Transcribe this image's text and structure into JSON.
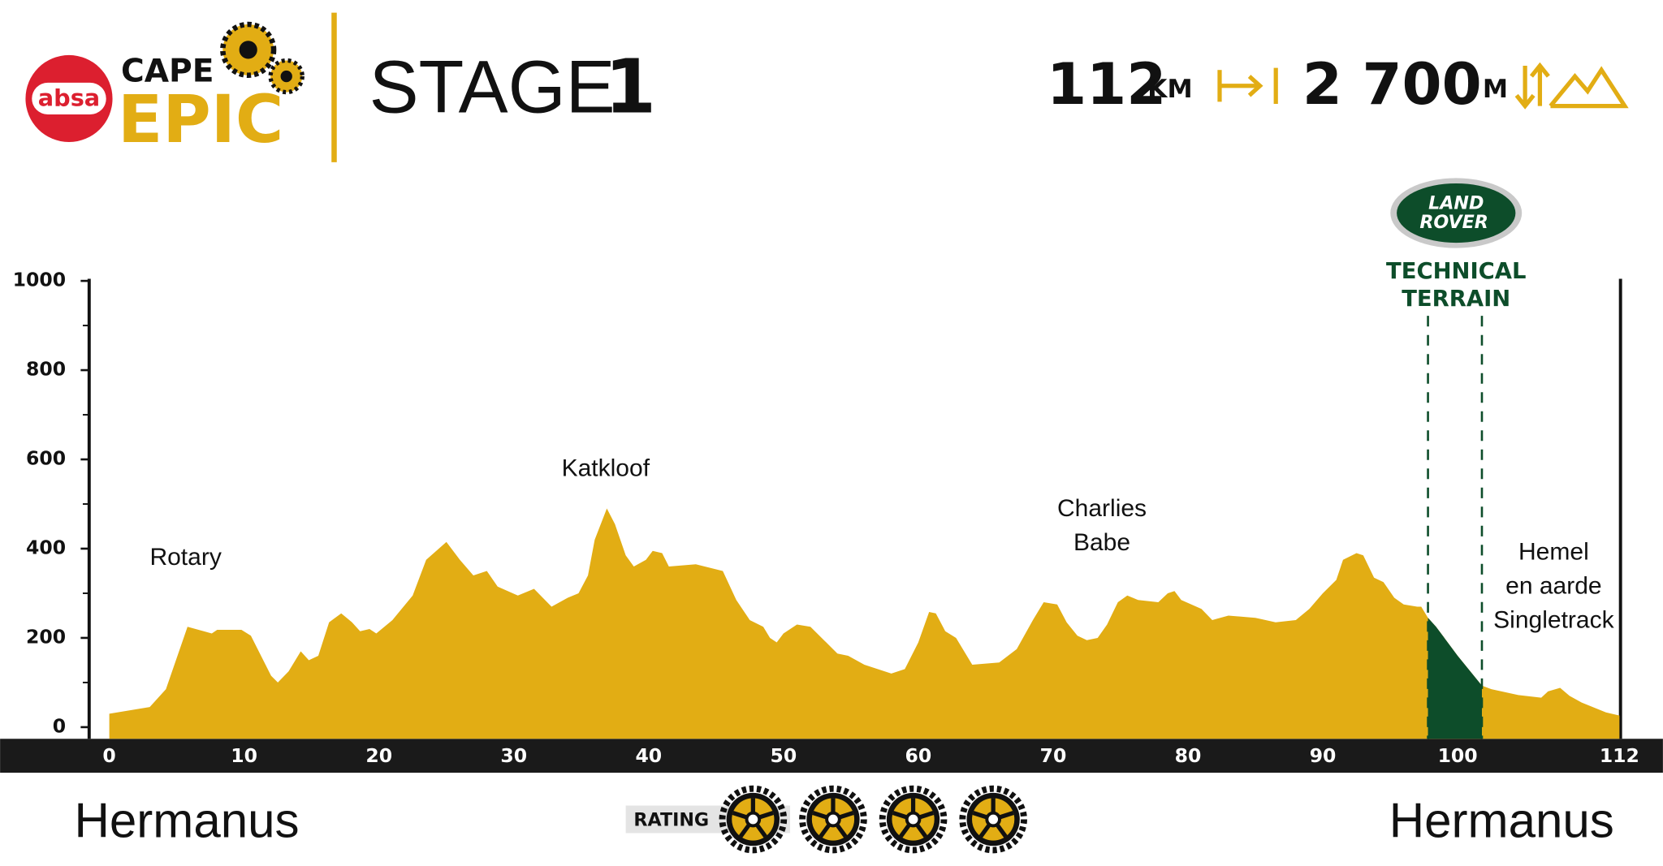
{
  "header": {
    "sponsor": "absa",
    "brand_top": "CAPE",
    "brand_bottom": "EPIC",
    "stage_word": "STAGE",
    "stage_number": "1",
    "distance": "112",
    "distance_unit": "KM",
    "climbing": "2 700",
    "climbing_unit": "M"
  },
  "chart_data": {
    "type": "area",
    "color": "#e2ad14",
    "x": [
      0,
      3,
      4.2,
      5.8,
      7.6,
      8,
      9.8,
      10.5,
      12,
      12.5,
      13.3,
      14.2,
      14.8,
      15.5,
      16.3,
      17.2,
      18,
      18.6,
      19.3,
      19.8,
      21,
      22.5,
      23.5,
      25,
      26,
      27,
      28,
      28.8,
      30.3,
      31.5,
      32.8,
      34,
      34.8,
      35.5,
      36,
      36.9,
      37.5,
      38.3,
      38.9,
      39.8,
      40.3,
      41,
      41.5,
      43.5,
      45.5,
      46.5,
      47.5,
      48.5,
      49,
      49.5,
      50,
      51,
      52,
      53,
      54,
      54.8,
      56,
      58,
      59,
      60,
      60.8,
      61.3,
      62,
      62.8,
      64,
      66,
      67.3,
      68.5,
      69.3,
      70.3,
      71,
      71.8,
      72.5,
      73.3,
      74,
      74.8,
      75.5,
      76.3,
      77.8,
      78.5,
      79,
      79.5,
      81,
      81.8,
      83,
      85,
      86.5,
      88,
      89,
      90,
      91,
      91.5,
      92.5,
      93,
      93.8,
      94.5,
      95.3,
      96,
      97,
      97.3,
      97.8,
      98.4,
      100,
      101.8,
      102.5,
      104.5,
      106.2,
      106.7,
      107.6,
      108.3,
      109.2,
      111,
      112
    ],
    "values": [
      30,
      45,
      85,
      225,
      210,
      218,
      218,
      205,
      115,
      100,
      125,
      170,
      150,
      160,
      235,
      255,
      235,
      215,
      220,
      210,
      240,
      295,
      375,
      415,
      375,
      340,
      350,
      315,
      295,
      310,
      270,
      290,
      300,
      340,
      420,
      490,
      455,
      385,
      360,
      375,
      395,
      390,
      360,
      365,
      350,
      285,
      240,
      225,
      200,
      190,
      210,
      230,
      225,
      195,
      165,
      160,
      140,
      120,
      130,
      190,
      258,
      255,
      215,
      200,
      140,
      145,
      175,
      240,
      280,
      275,
      235,
      205,
      195,
      200,
      230,
      280,
      295,
      285,
      280,
      300,
      305,
      285,
      265,
      240,
      250,
      245,
      235,
      240,
      265,
      300,
      330,
      375,
      390,
      385,
      335,
      325,
      290,
      275,
      270,
      270,
      245,
      225,
      160,
      93,
      85,
      72,
      66,
      80,
      88,
      70,
      55,
      33,
      26
    ],
    "xlim": [
      0,
      112
    ],
    "ylim": [
      0,
      1000
    ],
    "xticks": [
      0,
      10,
      20,
      30,
      40,
      50,
      60,
      70,
      80,
      90,
      100,
      112
    ],
    "yticks": [
      0,
      200,
      400,
      600,
      800,
      1000
    ],
    "annotations": [
      [
        "Rotary"
      ],
      [
        "Katkloof"
      ],
      [
        "Charlies",
        "Babe"
      ],
      [
        "Hemel",
        "en aarde",
        "Singletrack"
      ]
    ],
    "highlight": {
      "sponsor": [
        "LAND",
        "ROVER"
      ],
      "label": [
        "TECHNICAL",
        "TERRAIN"
      ],
      "color": "#0d4d2a",
      "xrange": [
        97.8,
        101.8
      ]
    },
    "start": "Hermanus",
    "finish": "Hermanus",
    "rating_label": "RATING",
    "rating": 4
  }
}
